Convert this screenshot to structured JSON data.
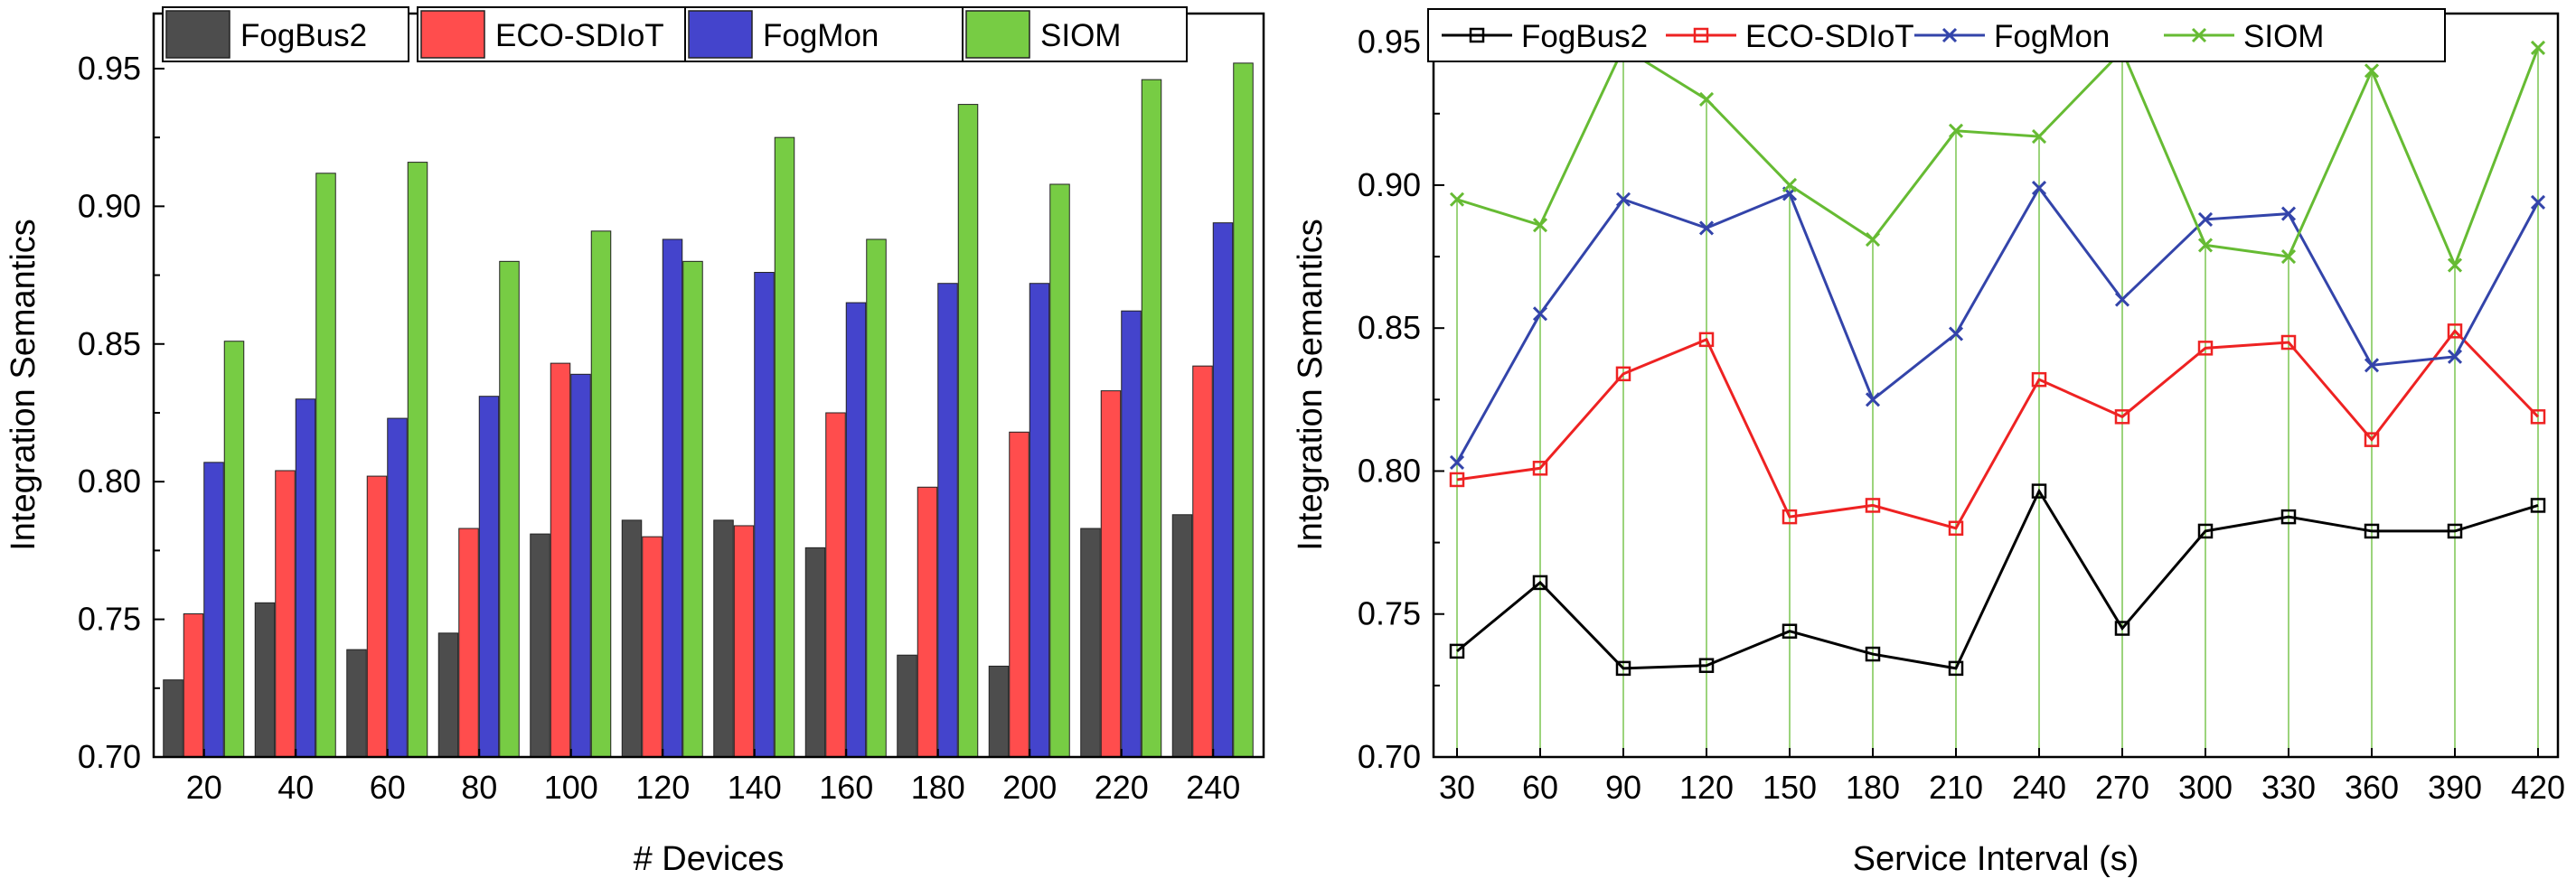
{
  "chart_data": [
    {
      "type": "bar",
      "xlabel": "# Devices",
      "ylabel": "Integration Semantics",
      "ylim": [
        0.7,
        0.97
      ],
      "yticks": [
        "0.70",
        "0.75",
        "0.80",
        "0.85",
        "0.90",
        "0.95"
      ],
      "categories": [
        "20",
        "40",
        "60",
        "80",
        "100",
        "120",
        "140",
        "160",
        "180",
        "200",
        "220",
        "240"
      ],
      "legend_position": "top",
      "series": [
        {
          "name": "FogBus2",
          "color": "#4d4d4d",
          "values": [
            0.728,
            0.756,
            0.739,
            0.745,
            0.781,
            0.786,
            0.786,
            0.776,
            0.737,
            0.733,
            0.783,
            0.788
          ]
        },
        {
          "name": "ECO-SDIoT",
          "color": "#ff4d4d",
          "values": [
            0.752,
            0.804,
            0.802,
            0.783,
            0.843,
            0.78,
            0.784,
            0.825,
            0.798,
            0.818,
            0.833,
            0.842
          ]
        },
        {
          "name": "FogMon",
          "color": "#4444cc",
          "values": [
            0.807,
            0.83,
            0.823,
            0.831,
            0.839,
            0.888,
            0.876,
            0.865,
            0.872,
            0.872,
            0.862,
            0.894
          ]
        },
        {
          "name": "SIOM",
          "color": "#77cc44",
          "values": [
            0.851,
            0.912,
            0.916,
            0.88,
            0.891,
            0.88,
            0.925,
            0.888,
            0.937,
            0.908,
            0.946,
            0.952
          ]
        }
      ]
    },
    {
      "type": "line",
      "xlabel": "Service Interval (s)",
      "ylabel": "Integration Semantics",
      "ylim": [
        0.7,
        0.96
      ],
      "yticks": [
        "0.70",
        "0.75",
        "0.80",
        "0.85",
        "0.90",
        "0.95"
      ],
      "x": [
        "30",
        "60",
        "90",
        "120",
        "150",
        "180",
        "210",
        "240",
        "270",
        "300",
        "330",
        "360",
        "390",
        "420"
      ],
      "legend_position": "top",
      "series": [
        {
          "name": "FogBus2",
          "color": "#000000",
          "marker": "square",
          "values": [
            0.737,
            0.761,
            0.731,
            0.732,
            0.744,
            0.736,
            0.731,
            0.793,
            0.745,
            0.779,
            0.784,
            0.779,
            0.779,
            0.788
          ]
        },
        {
          "name": "ECO-SDIoT",
          "color": "#ee2222",
          "marker": "square",
          "values": [
            0.797,
            0.801,
            0.834,
            0.846,
            0.784,
            0.788,
            0.78,
            0.832,
            0.819,
            0.843,
            0.845,
            0.811,
            0.849,
            0.819
          ]
        },
        {
          "name": "FogMon",
          "color": "#3344aa",
          "marker": "x",
          "values": [
            0.803,
            0.855,
            0.895,
            0.885,
            0.897,
            0.825,
            0.848,
            0.899,
            0.86,
            0.888,
            0.89,
            0.837,
            0.84,
            0.894
          ]
        },
        {
          "name": "SIOM",
          "color": "#66bb33",
          "marker": "x",
          "values": [
            0.895,
            0.886,
            0.948,
            0.93,
            0.9,
            0.881,
            0.919,
            0.917,
            0.947,
            0.879,
            0.875,
            0.94,
            0.872,
            0.948
          ]
        }
      ],
      "drop_lines": "SIOM"
    }
  ]
}
